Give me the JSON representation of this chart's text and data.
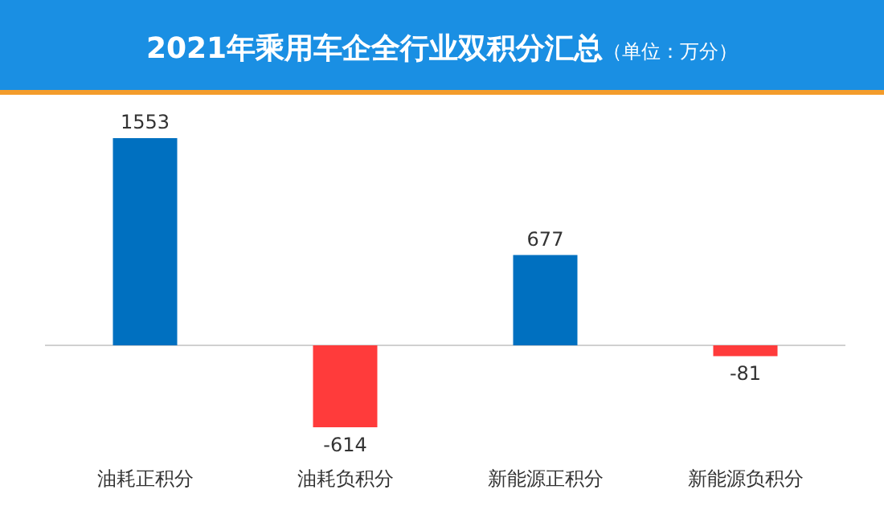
{
  "chart_data": {
    "type": "bar",
    "title": "2021年乘用车企全行业双积分汇总",
    "subtitle": "（单位：万分）",
    "categories": [
      "油耗正积分",
      "油耗负积分",
      "新能源正积分",
      "新能源负积分"
    ],
    "values": [
      1553,
      -614,
      677,
      -81
    ],
    "colors": [
      "#0070c0",
      "#ff3b3b",
      "#0070c0",
      "#ff3b3b"
    ],
    "data_labels": true
  }
}
